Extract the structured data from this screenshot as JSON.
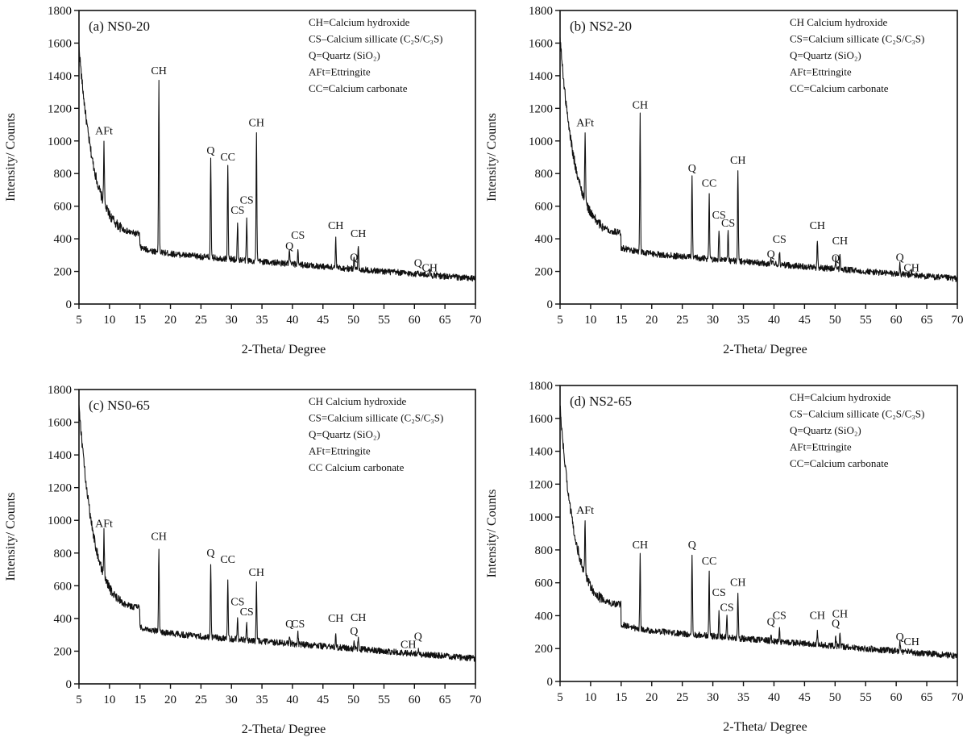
{
  "figure": {
    "panel_count": 4,
    "shared": {
      "xlabel": "2-Theta/ Degree",
      "ylabel": "Intensity/ Counts",
      "xlim": [
        5,
        70
      ],
      "ylim": [
        0,
        1800
      ],
      "xticks": [
        5,
        10,
        15,
        20,
        25,
        30,
        35,
        40,
        45,
        50,
        55,
        60,
        65,
        70
      ],
      "yticks": [
        0,
        200,
        400,
        600,
        800,
        1000,
        1200,
        1400,
        1600,
        1800
      ],
      "line_color": "#111111"
    }
  },
  "chart_data": [
    {
      "type": "line",
      "title": "(a) NS0-20",
      "xlabel": "2-Theta/ Degree",
      "ylabel": "Intensity/ Counts",
      "xlim": [
        5,
        70
      ],
      "ylim": [
        0,
        1800
      ],
      "grid": false,
      "legend_position": "top-right",
      "legend": [
        "CH=Calcium hydroxide",
        "CS–Calcium sillicate (C₂S/C₃S)",
        "Q=Quartz (SiO₂)",
        "AFt=Ettringite",
        "CC=Calcium carbonate"
      ],
      "background": {
        "start": 1560,
        "mid_at_15": 430,
        "end": 140
      },
      "peaks": [
        {
          "x": 9.1,
          "y": 1000,
          "label": "AFt",
          "label_y": 1040
        },
        {
          "x": 18.1,
          "y": 1370,
          "label": "CH",
          "label_y": 1410
        },
        {
          "x": 26.6,
          "y": 880,
          "label": "Q",
          "label_y": 920
        },
        {
          "x": 29.4,
          "y": 860,
          "label": "CC",
          "label_y": 880
        },
        {
          "x": 31.0,
          "y": 500,
          "label": "CS",
          "label_y": 555
        },
        {
          "x": 32.5,
          "y": 530,
          "label": "CS",
          "label_y": 615
        },
        {
          "x": 34.1,
          "y": 1045,
          "label": "CH",
          "label_y": 1090
        },
        {
          "x": 39.5,
          "y": 330,
          "label": "Q",
          "label_y": 335
        },
        {
          "x": 40.9,
          "y": 340,
          "label": "CS",
          "label_y": 400
        },
        {
          "x": 47.1,
          "y": 400,
          "label": "CH",
          "label_y": 460
        },
        {
          "x": 50.1,
          "y": 300,
          "label": "Q",
          "label_y": 265
        },
        {
          "x": 50.8,
          "y": 370,
          "label": "CH",
          "label_y": 410
        },
        {
          "x": 60.6,
          "y": 220,
          "label": "Q",
          "label_y": 230
        },
        {
          "x": 62.5,
          "y": 210,
          "label": "CH",
          "label_y": 200
        }
      ]
    },
    {
      "type": "line",
      "title": "(b) NS2-20",
      "xlabel": "2-Theta/ Degree",
      "ylabel": "Intensity/ Counts",
      "xlim": [
        5,
        70
      ],
      "ylim": [
        0,
        1800
      ],
      "grid": false,
      "legend_position": "top-right",
      "legend": [
        "CH  Calcium hydroxide",
        "CS=Calcium sillicate (C₂S/C₃S)",
        "Q=Quartz (SiO₂)",
        "AFt=Ettringite",
        "CC=Calcium carbonate"
      ],
      "background": {
        "start": 1610,
        "mid_at_15": 440,
        "end": 140
      },
      "peaks": [
        {
          "x": 9.1,
          "y": 1050,
          "label": "AFt",
          "label_y": 1090
        },
        {
          "x": 18.1,
          "y": 1160,
          "label": "CH",
          "label_y": 1200
        },
        {
          "x": 26.6,
          "y": 770,
          "label": "Q",
          "label_y": 810
        },
        {
          "x": 29.4,
          "y": 670,
          "label": "CC",
          "label_y": 720
        },
        {
          "x": 31.0,
          "y": 460,
          "label": "CS",
          "label_y": 525
        },
        {
          "x": 32.5,
          "y": 450,
          "label": "CS",
          "label_y": 475
        },
        {
          "x": 34.1,
          "y": 820,
          "label": "CH",
          "label_y": 860
        },
        {
          "x": 39.5,
          "y": 290,
          "label": "Q",
          "label_y": 285
        },
        {
          "x": 40.9,
          "y": 320,
          "label": "CS",
          "label_y": 375
        },
        {
          "x": 47.1,
          "y": 400,
          "label": "CH",
          "label_y": 460
        },
        {
          "x": 50.1,
          "y": 280,
          "label": "Q",
          "label_y": 260
        },
        {
          "x": 50.8,
          "y": 310,
          "label": "CH",
          "label_y": 365
        },
        {
          "x": 60.6,
          "y": 245,
          "label": "Q",
          "label_y": 265
        },
        {
          "x": 62.5,
          "y": 200,
          "label": "CH",
          "label_y": 200
        }
      ]
    },
    {
      "type": "line",
      "title": "(c) NS0-65",
      "xlabel": "2-Theta/ Degree",
      "ylabel": "Intensity/ Counts",
      "xlim": [
        5,
        70
      ],
      "ylim": [
        0,
        1800
      ],
      "grid": false,
      "legend_position": "top-right",
      "legend": [
        "CH  Calcium hydroxide",
        "CS=Calcium sillicate (C₂S/C₃S)",
        "Q=Quartz (SiO₂)",
        "AFt=Ettringite",
        "CC  Calcium carbonate"
      ],
      "background": {
        "start": 1690,
        "mid_at_15": 470,
        "end": 140
      },
      "peaks": [
        {
          "x": 9.1,
          "y": 930,
          "label": "AFt",
          "label_y": 960
        },
        {
          "x": 18.1,
          "y": 840,
          "label": "CH",
          "label_y": 880
        },
        {
          "x": 26.6,
          "y": 720,
          "label": "Q",
          "label_y": 780
        },
        {
          "x": 29.4,
          "y": 650,
          "label": "CC",
          "label_y": 740
        },
        {
          "x": 31.0,
          "y": 410,
          "label": "CS",
          "label_y": 480
        },
        {
          "x": 32.5,
          "y": 380,
          "label": "CS",
          "label_y": 420
        },
        {
          "x": 34.1,
          "y": 620,
          "label": "CH",
          "label_y": 660
        },
        {
          "x": 39.5,
          "y": 300,
          "label": "Q",
          "label_y": 345
        },
        {
          "x": 40.9,
          "y": 310,
          "label": "CS",
          "label_y": 345
        },
        {
          "x": 47.1,
          "y": 310,
          "label": "CH",
          "label_y": 380
        },
        {
          "x": 50.1,
          "y": 250,
          "label": "Q",
          "label_y": 300
        },
        {
          "x": 50.8,
          "y": 290,
          "label": "CH",
          "label_y": 385
        },
        {
          "x": 60.6,
          "y": 210,
          "label": "Q",
          "label_y": 270
        },
        {
          "x": 59.0,
          "y": 180,
          "label": "CH",
          "label_y": 220
        }
      ]
    },
    {
      "type": "line",
      "title": "(d) NS2-65",
      "xlabel": "2-Theta/ Degree",
      "ylabel": "Intensity/ Counts",
      "xlim": [
        5,
        70
      ],
      "ylim": [
        0,
        1800
      ],
      "grid": false,
      "legend_position": "top-right",
      "legend": [
        "CH=Calcium hydroxide",
        "CS−Calcium sillicate (C₂S/C₃S)",
        "Q=Quartz (SiO₂)",
        "AFt=Ettringite",
        "CC=Calcium carbonate"
      ],
      "background": {
        "start": 1650,
        "mid_at_15": 470,
        "end": 140
      },
      "peaks": [
        {
          "x": 9.1,
          "y": 980,
          "label": "AFt",
          "label_y": 1020
        },
        {
          "x": 18.1,
          "y": 770,
          "label": "CH",
          "label_y": 810
        },
        {
          "x": 26.6,
          "y": 770,
          "label": "Q",
          "label_y": 810
        },
        {
          "x": 29.4,
          "y": 670,
          "label": "CC",
          "label_y": 710
        },
        {
          "x": 31.0,
          "y": 420,
          "label": "CS",
          "label_y": 520
        },
        {
          "x": 32.3,
          "y": 400,
          "label": "CS",
          "label_y": 430
        },
        {
          "x": 34.1,
          "y": 530,
          "label": "CH",
          "label_y": 580
        },
        {
          "x": 39.5,
          "y": 300,
          "label": "Q",
          "label_y": 340
        },
        {
          "x": 40.9,
          "y": 310,
          "label": "CS",
          "label_y": 380
        },
        {
          "x": 47.1,
          "y": 310,
          "label": "CH",
          "label_y": 380
        },
        {
          "x": 50.1,
          "y": 270,
          "label": "Q",
          "label_y": 330
        },
        {
          "x": 50.8,
          "y": 290,
          "label": "CH",
          "label_y": 390
        },
        {
          "x": 60.6,
          "y": 240,
          "label": "Q",
          "label_y": 250
        },
        {
          "x": 62.5,
          "y": 190,
          "label": "CH",
          "label_y": 220
        }
      ]
    }
  ]
}
